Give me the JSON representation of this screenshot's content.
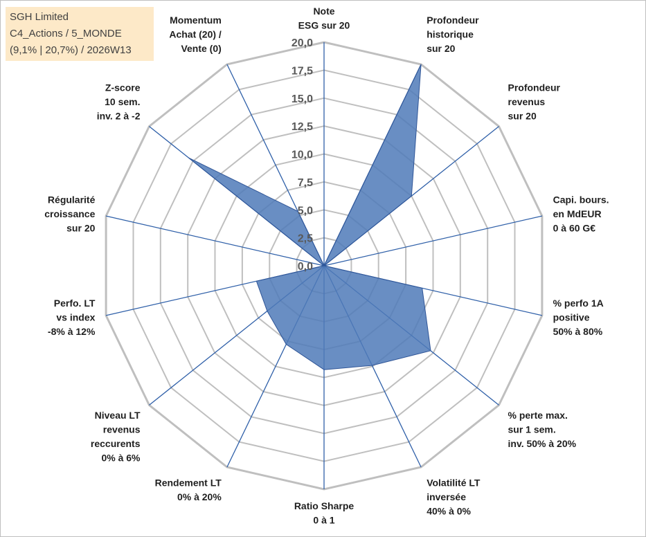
{
  "info_box": {
    "line1": "SGH Limited",
    "line2": "C4_Actions / 5_MONDE",
    "line3": "(9,1% | 20,7%) / 2026W13"
  },
  "colors": {
    "grid": "#bfbfbf",
    "spoke": "#2e5fa8",
    "fill": "#4f7ab8",
    "fill_stroke": "#2f5597",
    "info_bg": "#fde9c8"
  },
  "chart_data": {
    "type": "radar",
    "title": "",
    "rmin": 0,
    "rmax": 20,
    "ticks": [
      "0,0",
      "2,5",
      "5,0",
      "7,5",
      "10,0",
      "12,5",
      "15,0",
      "17,5",
      "20,0"
    ],
    "grid": true,
    "axes": [
      {
        "label": [
          "Note",
          "ESG sur 20"
        ]
      },
      {
        "label": [
          "Profondeur",
          "historique",
          "sur 20"
        ]
      },
      {
        "label": [
          "Profondeur",
          "revenus",
          "sur 20"
        ]
      },
      {
        "label": [
          "Capi. bours.",
          "en MdEUR",
          "0 à 60 G€"
        ]
      },
      {
        "label": [
          "% perfo 1A",
          "positive",
          "50% à 80%"
        ]
      },
      {
        "label": [
          "% perte max.",
          "sur 1 sem.",
          "inv. 50% à 20%"
        ]
      },
      {
        "label": [
          "Volatilité LT",
          "inversée",
          "40% à 0%"
        ]
      },
      {
        "label": [
          "Ratio Sharpe",
          "0 à 1"
        ]
      },
      {
        "label": [
          "Rendement LT",
          "0% à 20%"
        ]
      },
      {
        "label": [
          "Niveau LT",
          "revenus",
          "reccurents",
          "0% à 6%"
        ]
      },
      {
        "label": [
          "Perfo. LT",
          "vs index",
          "-8% à 12%"
        ]
      },
      {
        "label": [
          "Régularité",
          "croissance",
          "sur 20"
        ]
      },
      {
        "label": [
          "Z-score",
          "10 sem.",
          "inv. 2 à -2"
        ]
      },
      {
        "label": [
          "Momentum",
          "Achat (20) /",
          "Vente (0)"
        ]
      }
    ],
    "series": [
      {
        "values": [
          0,
          20,
          10,
          0,
          9,
          12.2,
          9.9,
          9.3,
          7.8,
          6.5,
          6.2,
          0,
          15.5,
          5.4
        ]
      }
    ]
  }
}
